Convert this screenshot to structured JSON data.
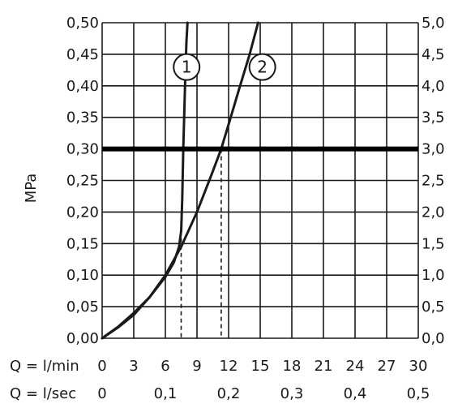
{
  "chart_data": {
    "type": "line",
    "ylabel": "MPa",
    "xlim": [
      0,
      30
    ],
    "ylim": [
      0,
      0.5
    ],
    "x_ticks": [
      "0",
      "3",
      "6",
      "9",
      "12",
      "15",
      "18",
      "21",
      "24",
      "27",
      "30"
    ],
    "x_tick_values": [
      0,
      3,
      6,
      9,
      12,
      15,
      18,
      21,
      24,
      27,
      30
    ],
    "x_row1_caption": "Q = l/min",
    "x2_ticks": [
      "0",
      "0,1",
      "0,2",
      "0,3",
      "0,4",
      "0,5"
    ],
    "x2_tick_values": [
      0,
      6,
      12,
      18,
      24,
      30
    ],
    "x_row2_caption": "Q = l/sec",
    "y_ticks": [
      "0,00",
      "0,05",
      "0,10",
      "0,15",
      "0,20",
      "0,25",
      "0,30",
      "0,35",
      "0,40",
      "0,45",
      "0,50"
    ],
    "y_tick_values": [
      0,
      0.05,
      0.1,
      0.15,
      0.2,
      0.25,
      0.3,
      0.35,
      0.4,
      0.45,
      0.5
    ],
    "y2_ticks": [
      "0,0",
      "0,5",
      "1,0",
      "1,5",
      "2,0",
      "2,5",
      "3,0",
      "3,5",
      "4,0",
      "4,5",
      "5,0"
    ],
    "grid": true,
    "reference_line": {
      "y": 0.3
    },
    "series": [
      {
        "name": "1",
        "x": [
          0,
          1.5,
          3,
          4.5,
          6,
          6.8,
          7.3,
          7.5,
          7.6,
          7.7,
          7.8,
          7.9,
          8.0,
          8.1
        ],
        "y": [
          0,
          0.018,
          0.04,
          0.065,
          0.097,
          0.12,
          0.145,
          0.17,
          0.22,
          0.3,
          0.36,
          0.42,
          0.47,
          0.5
        ],
        "marker_x": 7.5
      },
      {
        "name": "2",
        "x": [
          0,
          1.5,
          3,
          4.5,
          6,
          7.5,
          9,
          10.4,
          11.3,
          12.2,
          13,
          14,
          14.8
        ],
        "y": [
          0,
          0.017,
          0.037,
          0.065,
          0.1,
          0.145,
          0.2,
          0.26,
          0.3,
          0.35,
          0.395,
          0.45,
          0.5
        ],
        "marker_x": 11.3
      }
    ],
    "badge_y": 0.44
  }
}
